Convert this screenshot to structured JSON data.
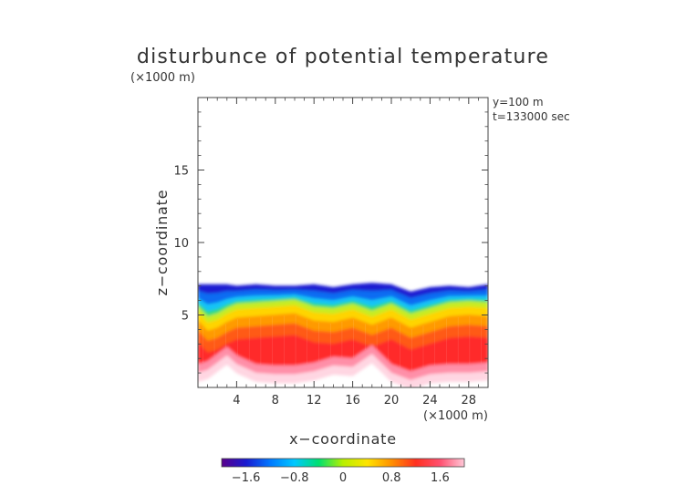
{
  "chart_data": {
    "type": "heatmap",
    "title": "disturbunce of potential temperature",
    "xlabel": "x−coordinate",
    "ylabel": "z−coordinate",
    "x_unit": "(×1000 m)",
    "y_unit": "(×1000 m)",
    "annotations": [
      "y=100 m",
      "t=133000 sec"
    ],
    "xlim": [
      0,
      30
    ],
    "ylim": [
      0,
      20
    ],
    "xticks": [
      4,
      8,
      12,
      16,
      20,
      24,
      28
    ],
    "yticks": [
      5,
      10,
      15
    ],
    "xtick_labels": [
      "4",
      "8",
      "12",
      "16",
      "20",
      "24",
      "28"
    ],
    "ytick_labels": [
      "5",
      "10",
      "15"
    ],
    "colorbar": {
      "range": [
        -2.0,
        2.0
      ],
      "ticks": [
        -1.6,
        -0.8,
        0,
        0.8,
        1.6
      ],
      "tick_labels": [
        "−1.6",
        "−0.8",
        "0",
        "0.8",
        "1.6"
      ],
      "colormap": [
        "#5a008c",
        "#1a1ad0",
        "#0078ff",
        "#00c8ff",
        "#00e070",
        "#b8f000",
        "#ffe400",
        "#ff9000",
        "#ff3020",
        "#ff5070",
        "#ffc8d8"
      ]
    },
    "field": {
      "x": [
        0,
        1,
        2,
        3,
        4,
        6,
        8,
        10,
        12,
        14,
        16,
        18,
        20,
        22,
        24,
        26,
        28,
        30
      ],
      "top_z": [
        7.1,
        7.1,
        7.1,
        7.1,
        7.0,
        7.1,
        7.0,
        7.0,
        7.1,
        6.9,
        7.1,
        7.2,
        7.1,
        6.6,
        6.9,
        7.0,
        6.9,
        7.1
      ],
      "interface_z": [
        5.5,
        4.8,
        5.0,
        5.4,
        5.7,
        5.8,
        5.9,
        6.0,
        5.5,
        5.4,
        5.7,
        5.2,
        5.7,
        5.0,
        5.4,
        5.8,
        5.9,
        5.8
      ],
      "bottom_z": [
        1.6,
        1.8,
        2.3,
        2.8,
        2.2,
        1.6,
        1.5,
        1.5,
        1.7,
        2.1,
        2.0,
        2.9,
        1.6,
        1.1,
        1.5,
        1.6,
        1.6,
        1.7
      ]
    }
  }
}
